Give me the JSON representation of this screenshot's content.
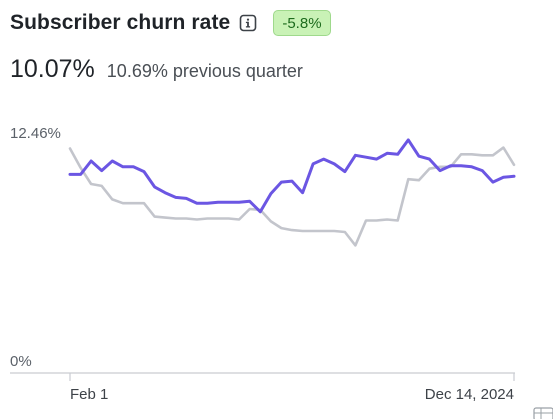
{
  "header": {
    "title": "Subscriber churn rate",
    "change_badge": "-5.8%"
  },
  "metrics": {
    "current_value": "10.07%",
    "previous_value": "10.69% previous quarter"
  },
  "colors": {
    "current_series": "#6b56e3",
    "previous_series": "#c3c5cc",
    "badge_bg": "#c9f2b6",
    "badge_text": "#1d6b1d"
  },
  "chart_data": {
    "type": "line",
    "ylim": [
      0,
      12.46
    ],
    "y_ticks": [
      "12.46%",
      "0%"
    ],
    "x_ticks": [
      "Feb 1",
      "Dec 14, 2024"
    ],
    "grid": false,
    "series": [
      {
        "id": "current",
        "values": [
          10.3,
          10.3,
          11.0,
          10.5,
          11.0,
          10.7,
          10.7,
          10.45,
          9.65,
          9.35,
          9.1,
          9.05,
          8.8,
          8.8,
          8.85,
          8.85,
          8.85,
          8.9,
          8.35,
          9.3,
          9.9,
          9.95,
          9.35,
          10.85,
          11.1,
          10.85,
          10.45,
          11.3,
          11.2,
          11.1,
          11.4,
          11.35,
          12.1,
          11.25,
          11.1,
          10.5,
          10.75,
          10.75,
          10.7,
          10.5,
          9.9,
          10.15,
          10.2
        ]
      },
      {
        "id": "previous",
        "values": [
          11.65,
          10.65,
          9.8,
          9.7,
          9.0,
          8.8,
          8.8,
          8.8,
          8.1,
          8.05,
          8.0,
          8.0,
          7.95,
          8.0,
          8.0,
          8.0,
          7.95,
          8.5,
          8.45,
          7.85,
          7.5,
          7.4,
          7.35,
          7.35,
          7.35,
          7.35,
          7.3,
          6.6,
          7.9,
          7.9,
          7.95,
          7.9,
          10.05,
          10.0,
          10.6,
          10.7,
          10.7,
          11.35,
          11.35,
          11.3,
          11.3,
          11.7,
          10.8
        ]
      }
    ]
  }
}
